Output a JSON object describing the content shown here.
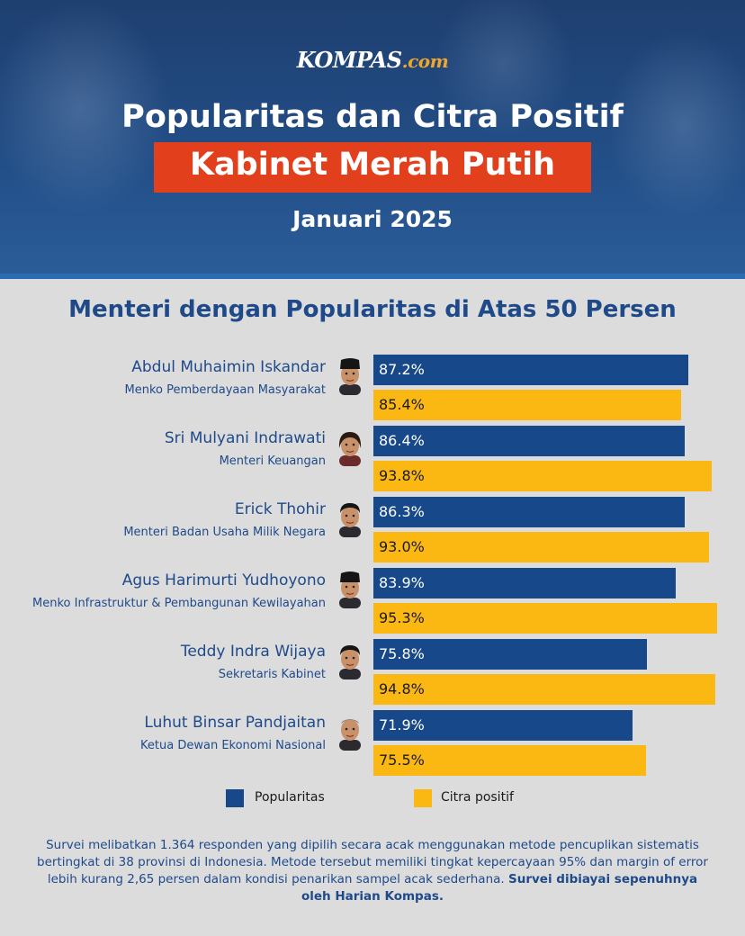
{
  "header": {
    "logo_main": "KOMPAS",
    "logo_suffix": ".com",
    "title_line1": "Popularitas dan Citra Positif",
    "title_line2": "Kabinet Merah Putih",
    "date": "Januari 2025"
  },
  "colors": {
    "popularitas": "#17498a",
    "citra_positif": "#fbb812",
    "title_highlight": "#e2401d",
    "text_blue": "#1f4a8a"
  },
  "chart_data": {
    "type": "bar",
    "orientation": "horizontal",
    "title": "Menteri dengan Popularitas di Atas 50 Persen",
    "categories": [
      {
        "name": "Abdul Muhaimin Iskandar",
        "role": "Menko Pemberdayaan Masyarakat",
        "pop_label": "87.2%",
        "cit_label": "85.4%"
      },
      {
        "name": "Sri Mulyani Indrawati",
        "role": "Menteri Keuangan",
        "pop_label": "86.4%",
        "cit_label": "93.8%"
      },
      {
        "name": "Erick Thohir",
        "role": "Menteri Badan Usaha Milik Negara",
        "pop_label": "86.3%",
        "cit_label": "93.0%"
      },
      {
        "name": "Agus Harimurti Yudhoyono",
        "role": "Menko Infrastruktur & Pembangunan Kewilayahan",
        "pop_label": "83.9%",
        "cit_label": "95.3%"
      },
      {
        "name": "Teddy Indra Wijaya",
        "role": "Sekretaris Kabinet",
        "pop_label": "75.8%",
        "cit_label": "94.8%"
      },
      {
        "name": "Luhut Binsar Pandjaitan",
        "role": "Ketua Dewan Ekonomi Nasional",
        "pop_label": "71.9%",
        "cit_label": "75.5%"
      }
    ],
    "series": [
      {
        "name": "Popularitas",
        "values": [
          87.2,
          86.4,
          86.3,
          83.9,
          75.8,
          71.9
        ]
      },
      {
        "name": "Citra positif",
        "values": [
          85.4,
          93.8,
          93.0,
          95.3,
          94.8,
          75.5
        ]
      }
    ],
    "xlim": [
      0,
      100
    ],
    "legend": {
      "position": "bottom",
      "items": [
        "Popularitas",
        "Citra positif"
      ]
    }
  },
  "note": {
    "text": "Survei melibatkan 1.364 responden yang dipilih secara acak menggunakan metode pencuplikan sistematis bertingkat di 38 provinsi di Indonesia. Metode tersebut memiliki tingkat kepercayaan 95% dan margin of error lebih kurang 2,65 persen dalam kondisi penarikan sampel acak sederhana.",
    "bold_text": "Survei dibiayai sepenuhnya oleh Harian Kompas."
  }
}
